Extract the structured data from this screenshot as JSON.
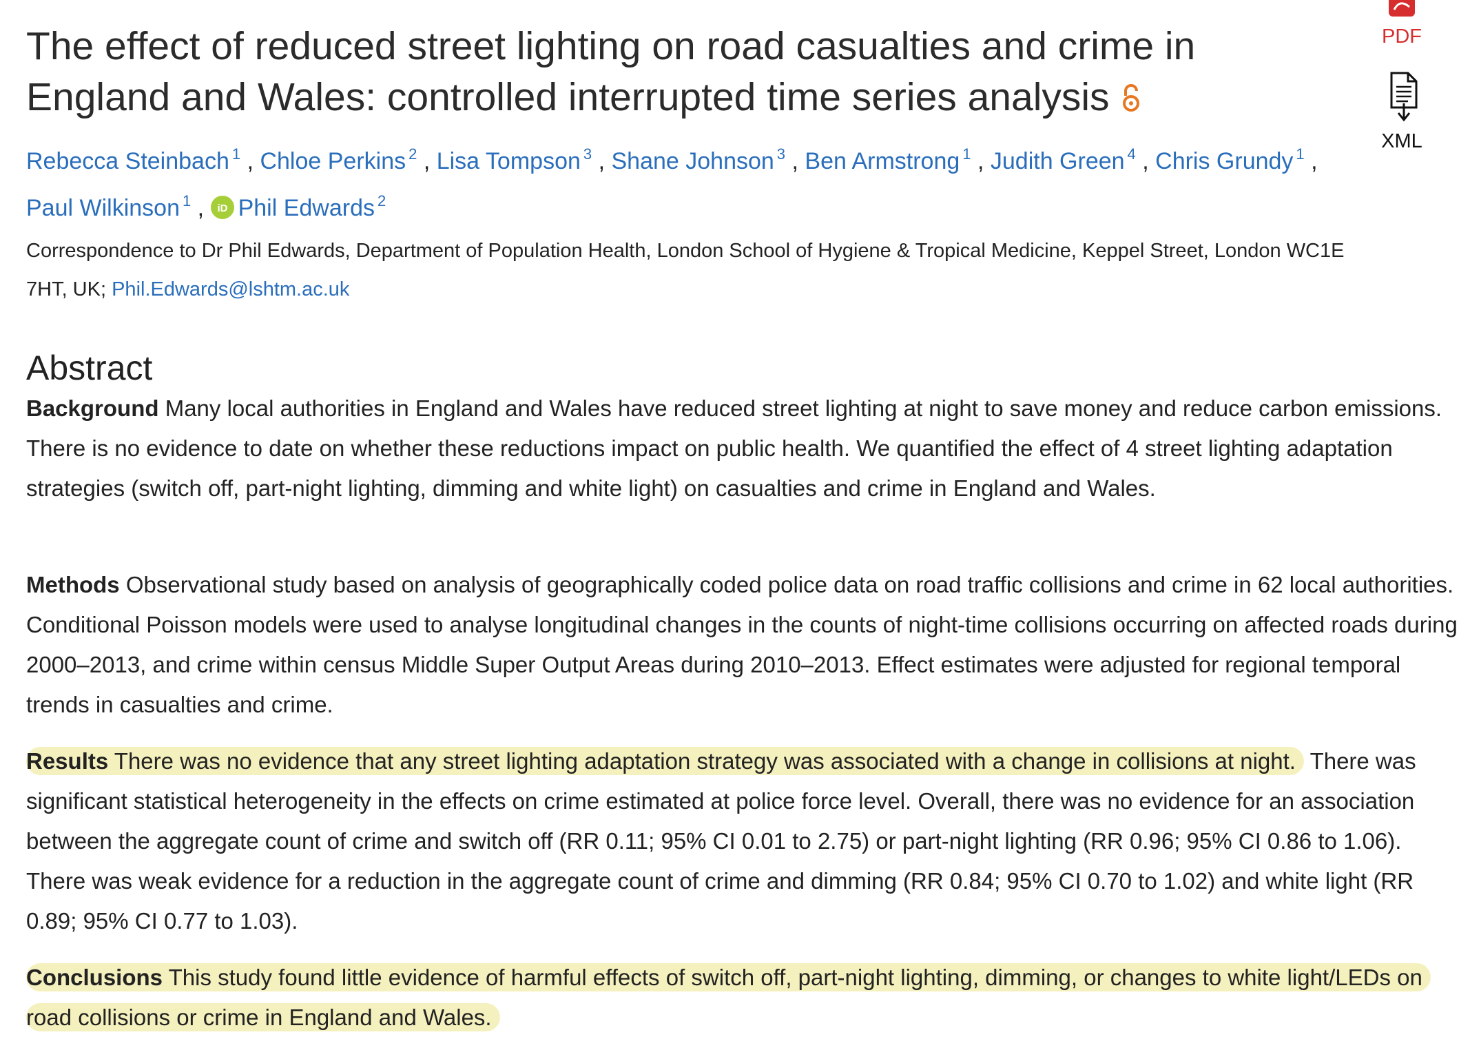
{
  "article": {
    "title": "The effect of reduced street lighting on road casualties and crime in England and Wales: controlled interrupted time series analysis",
    "open_access_icon": "open-access-lock-icon",
    "accent_color": "#e87722"
  },
  "tools": {
    "pdf_label": "PDF",
    "pdf_icon": "pdf-icon",
    "pdf_color": "#d62e2e",
    "xml_label": "XML",
    "xml_icon": "xml-document-icon"
  },
  "authors": [
    {
      "name": "Rebecca Steinbach",
      "affiliation": "1"
    },
    {
      "name": "Chloe Perkins",
      "affiliation": "2"
    },
    {
      "name": "Lisa Tompson",
      "affiliation": "3"
    },
    {
      "name": "Shane Johnson",
      "affiliation": "3"
    },
    {
      "name": "Ben Armstrong",
      "affiliation": "1"
    },
    {
      "name": "Judith Green",
      "affiliation": "4"
    },
    {
      "name": "Chris Grundy",
      "affiliation": "1"
    },
    {
      "name": "Paul Wilkinson",
      "affiliation": "1"
    },
    {
      "name": "Phil Edwards",
      "affiliation": "2",
      "orcid": true
    }
  ],
  "correspondence": {
    "text": "Correspondence to Dr Phil Edwards, Department of Population Health, London School of Hygiene & Tropical Medicine, Keppel Street, London WC1E 7HT, UK; ",
    "email": "Phil.Edwards@lshtm.ac.uk"
  },
  "abstract": {
    "heading": "Abstract",
    "background": {
      "label": "Background",
      "text": "Many local authorities in England and Wales have reduced street lighting at night to save money and reduce carbon emissions. There is no evidence to date on whether these reductions impact on public health. We quantified the effect of 4 street lighting adaptation strategies (switch off, part-night lighting, dimming and white light) on casualties and crime in England and Wales."
    },
    "methods": {
      "label": "Methods",
      "text": "Observational study based on analysis of geographically coded police data on road traffic collisions and crime in 62 local authorities. Conditional Poisson models were used to analyse longitudinal changes in the counts of night-time collisions occurring on affected roads during 2000–2013, and crime within census Middle Super Output Areas during 2010–2013. Effect estimates were adjusted for regional temporal trends in casualties and crime."
    },
    "results": {
      "label": "Results",
      "highlighted_text": "There was no evidence that any street lighting adaptation strategy was associated with a change in collisions at night.",
      "text": "There was significant statistical heterogeneity in the effects on crime estimated at police force level. Overall, there was no evidence for an association between the aggregate count of crime and switch off (RR 0.11; 95% CI 0.01 to 2.75) or part-night lighting (RR 0.96; 95% CI 0.86 to 1.06). There was weak evidence for a reduction in the aggregate count of crime and dimming (RR 0.84; 95% CI 0.70 to 1.02) and white light (RR 0.89; 95% CI 0.77 to 1.03)."
    },
    "conclusions": {
      "label": "Conclusions",
      "highlighted_text": "This study found little evidence of harmful effects of switch off, part-night lighting, dimming, or changes to white light/LEDs on road collisions or crime in England and Wales."
    }
  },
  "colors": {
    "link": "#2a6ebb",
    "highlight": "#f5f1be",
    "orcid": "#a6ce39"
  }
}
